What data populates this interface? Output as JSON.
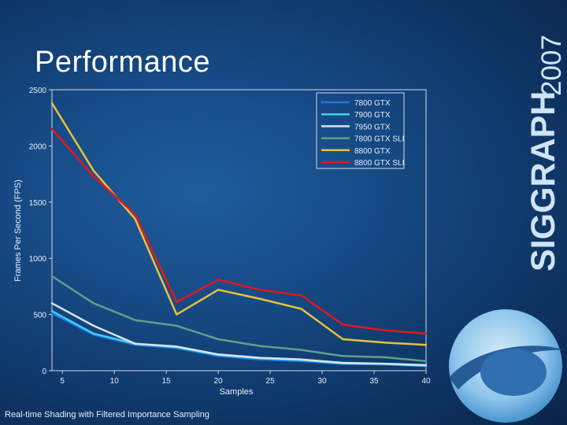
{
  "slide": {
    "title": "Performance",
    "footer": "Real-time Shading with Filtered Importance Sampling",
    "brand_name": "SIGGRAPH",
    "brand_year": "2007"
  },
  "colors": {
    "background": "#164a85",
    "brand_text": "#cfe4f6"
  },
  "chart_data": {
    "type": "line",
    "title": "",
    "xlabel": "Samples",
    "ylabel": "Frames Per Second (FPS)",
    "xlim": [
      4,
      40
    ],
    "ylim": [
      0,
      2500
    ],
    "xticks": [
      5,
      10,
      15,
      20,
      25,
      30,
      35,
      40
    ],
    "yticks": [
      0,
      500,
      1000,
      1500,
      2000,
      2500
    ],
    "grid": false,
    "legend": "top-right",
    "series": [
      {
        "name": "7800 GTX",
        "color": "#1e78d8",
        "points": [
          [
            4,
            510
          ],
          [
            8,
            320
          ],
          [
            12,
            230
          ],
          [
            16,
            200
          ],
          [
            20,
            130
          ],
          [
            24,
            100
          ],
          [
            28,
            85
          ],
          [
            32,
            60
          ],
          [
            36,
            55
          ],
          [
            40,
            40
          ]
        ]
      },
      {
        "name": "7900 GTX",
        "color": "#3fd0f2",
        "points": [
          [
            4,
            530
          ],
          [
            8,
            330
          ],
          [
            12,
            240
          ],
          [
            16,
            210
          ],
          [
            20,
            140
          ],
          [
            24,
            110
          ],
          [
            28,
            95
          ],
          [
            32,
            65
          ],
          [
            36,
            60
          ],
          [
            40,
            45
          ]
        ]
      },
      {
        "name": "7950 GTX",
        "color": "#d8e4ee",
        "points": [
          [
            4,
            600
          ],
          [
            8,
            400
          ],
          [
            12,
            240
          ],
          [
            16,
            215
          ],
          [
            20,
            145
          ],
          [
            24,
            115
          ],
          [
            28,
            100
          ],
          [
            32,
            70
          ],
          [
            36,
            62
          ],
          [
            40,
            50
          ]
        ]
      },
      {
        "name": "7800 GTX SLI",
        "color": "#5fa08a",
        "points": [
          [
            4,
            840
          ],
          [
            8,
            600
          ],
          [
            12,
            450
          ],
          [
            16,
            400
          ],
          [
            20,
            280
          ],
          [
            24,
            220
          ],
          [
            28,
            185
          ],
          [
            32,
            130
          ],
          [
            36,
            120
          ],
          [
            40,
            85
          ]
        ]
      },
      {
        "name": "8800 GTX",
        "color": "#e8c23a",
        "points": [
          [
            4,
            2380
          ],
          [
            8,
            1780
          ],
          [
            12,
            1350
          ],
          [
            16,
            500
          ],
          [
            20,
            720
          ],
          [
            24,
            640
          ],
          [
            28,
            550
          ],
          [
            32,
            280
          ],
          [
            36,
            250
          ],
          [
            40,
            230
          ]
        ]
      },
      {
        "name": "8800 GTX SLI",
        "color": "#e5161c",
        "points": [
          [
            4,
            2150
          ],
          [
            8,
            1730
          ],
          [
            12,
            1390
          ],
          [
            16,
            610
          ],
          [
            20,
            810
          ],
          [
            24,
            720
          ],
          [
            28,
            670
          ],
          [
            32,
            410
          ],
          [
            36,
            360
          ],
          [
            40,
            330
          ]
        ]
      }
    ]
  }
}
